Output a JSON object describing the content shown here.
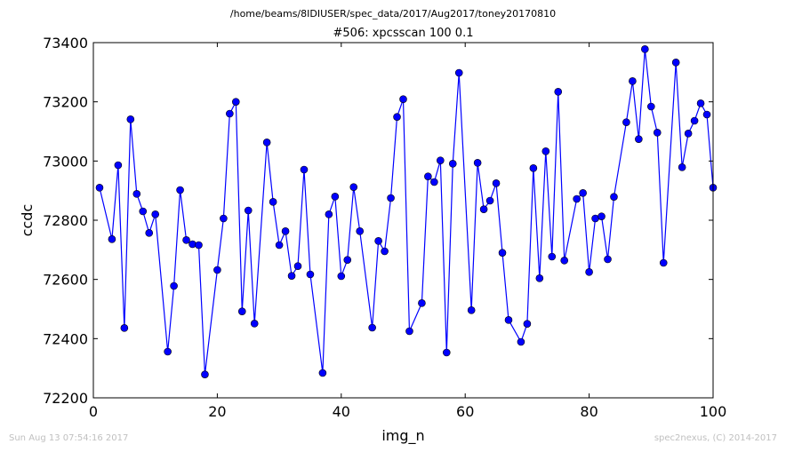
{
  "header": {
    "path": "/home/beams/8IDIUSER/spec_data/2017/Aug2017/toney20170810"
  },
  "footer": {
    "timestamp": "Sun Aug 13 07:54:16 2017",
    "credit": "spec2nexus, (C) 2014-2017"
  },
  "chart_data": {
    "type": "line",
    "title": "#506: xpcsscan 100 0.1",
    "xlabel": "img_n",
    "ylabel": "ccdc",
    "xlim": [
      0,
      100
    ],
    "ylim": [
      72200,
      73400
    ],
    "xticks": [
      0,
      20,
      40,
      60,
      80,
      100
    ],
    "yticks": [
      72200,
      72400,
      72600,
      72800,
      73000,
      73200,
      73400
    ],
    "grid": false,
    "legend": "none",
    "series": [
      {
        "color": "#0000ff",
        "marker": "circle",
        "x": [
          1,
          3,
          4,
          5,
          6,
          7,
          8,
          9,
          10,
          12,
          13,
          14,
          15,
          16,
          17,
          18,
          20,
          21,
          22,
          23,
          24,
          25,
          26,
          28,
          29,
          30,
          31,
          32,
          33,
          34,
          35,
          37,
          38,
          39,
          40,
          41,
          42,
          43,
          45,
          46,
          47,
          48,
          49,
          50,
          51,
          53,
          54,
          55,
          56,
          57,
          58,
          59,
          61,
          62,
          63,
          64,
          65,
          66,
          67,
          69,
          70,
          71,
          72,
          73,
          74,
          75,
          76,
          78,
          79,
          80,
          81,
          82,
          83,
          84,
          86,
          87,
          88,
          89,
          90,
          91,
          92,
          94,
          95,
          96,
          97,
          98,
          99,
          100
        ],
        "y": [
          72910,
          72736,
          72986,
          72436,
          73141,
          72889,
          72830,
          72757,
          72820,
          72356,
          72578,
          72902,
          72733,
          72719,
          72716,
          72279,
          72632,
          72806,
          73160,
          73200,
          72492,
          72833,
          72451,
          73063,
          72862,
          72716,
          72763,
          72612,
          72645,
          72971,
          72617,
          72284,
          72820,
          72880,
          72611,
          72666,
          72912,
          72763,
          72437,
          72730,
          72695,
          72875,
          73149,
          73209,
          72425,
          72520,
          72948,
          72929,
          73002,
          72353,
          72991,
          73298,
          72496,
          72994,
          72837,
          72866,
          72925,
          72690,
          72463,
          72389,
          72450,
          72976,
          72604,
          73033,
          72677,
          73234,
          72664,
          72872,
          72892,
          72625,
          72806,
          72813,
          72668,
          72879,
          73131,
          73270,
          73074,
          73378,
          73184,
          73096,
          72656,
          73333,
          72979,
          73093,
          73136,
          73195,
          73157,
          72910
        ]
      }
    ]
  }
}
